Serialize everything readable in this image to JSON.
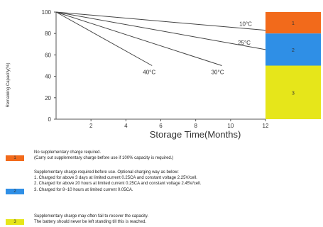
{
  "chart_data": {
    "type": "line",
    "xlabel": "Storage Time(Months)",
    "ylabel": "Remaining Capacity(%)",
    "xlim": [
      0,
      12
    ],
    "ylim": [
      0,
      100
    ],
    "xticks": [
      2,
      4,
      6,
      8,
      10,
      12
    ],
    "yticks": [
      0,
      20,
      40,
      60,
      80,
      100
    ],
    "grid": false,
    "series": [
      {
        "name": "10°C",
        "x": [
          0,
          12
        ],
        "y": [
          100,
          83
        ]
      },
      {
        "name": "25°C",
        "x": [
          0,
          12
        ],
        "y": [
          100,
          65
        ]
      },
      {
        "name": "30°C",
        "x": [
          0,
          9.5
        ],
        "y": [
          100,
          50
        ]
      },
      {
        "name": "40°C",
        "x": [
          0,
          5.5
        ],
        "y": [
          100,
          50
        ]
      }
    ],
    "zones": [
      {
        "label": "1",
        "range": [
          80,
          100
        ],
        "color": "#f26a1b"
      },
      {
        "label": "2",
        "range": [
          50,
          80
        ],
        "color": "#2f8fe6"
      },
      {
        "label": "3",
        "range": [
          0,
          50
        ],
        "color": "#e6e61a"
      }
    ]
  },
  "legend": [
    {
      "label": "1",
      "color": "#f26a1b",
      "lines": [
        "No supplementary charge required.",
        "(Carry out supplementary charge before use if 100% capacity is required.)"
      ]
    },
    {
      "label": "2",
      "color": "#2f8fe6",
      "lines": [
        "Supplementary charge required before use. Optional charging way as below:",
        "1. Charged for above 3 days at limited current 0.25CA and constant voltage 2.25V/cell.",
        "2. Charged for above 20 hours at limited current 0.25CA and constant voltage 2.45V/cell.",
        "3. Charged for 8~10 hours at limited current 0.05CA."
      ]
    },
    {
      "label": "3",
      "color": "#e6e61a",
      "lines": [
        "Supplementary charge may often fail to recover the capacity.",
        "The battery should never be left standing till this is reached."
      ]
    }
  ]
}
